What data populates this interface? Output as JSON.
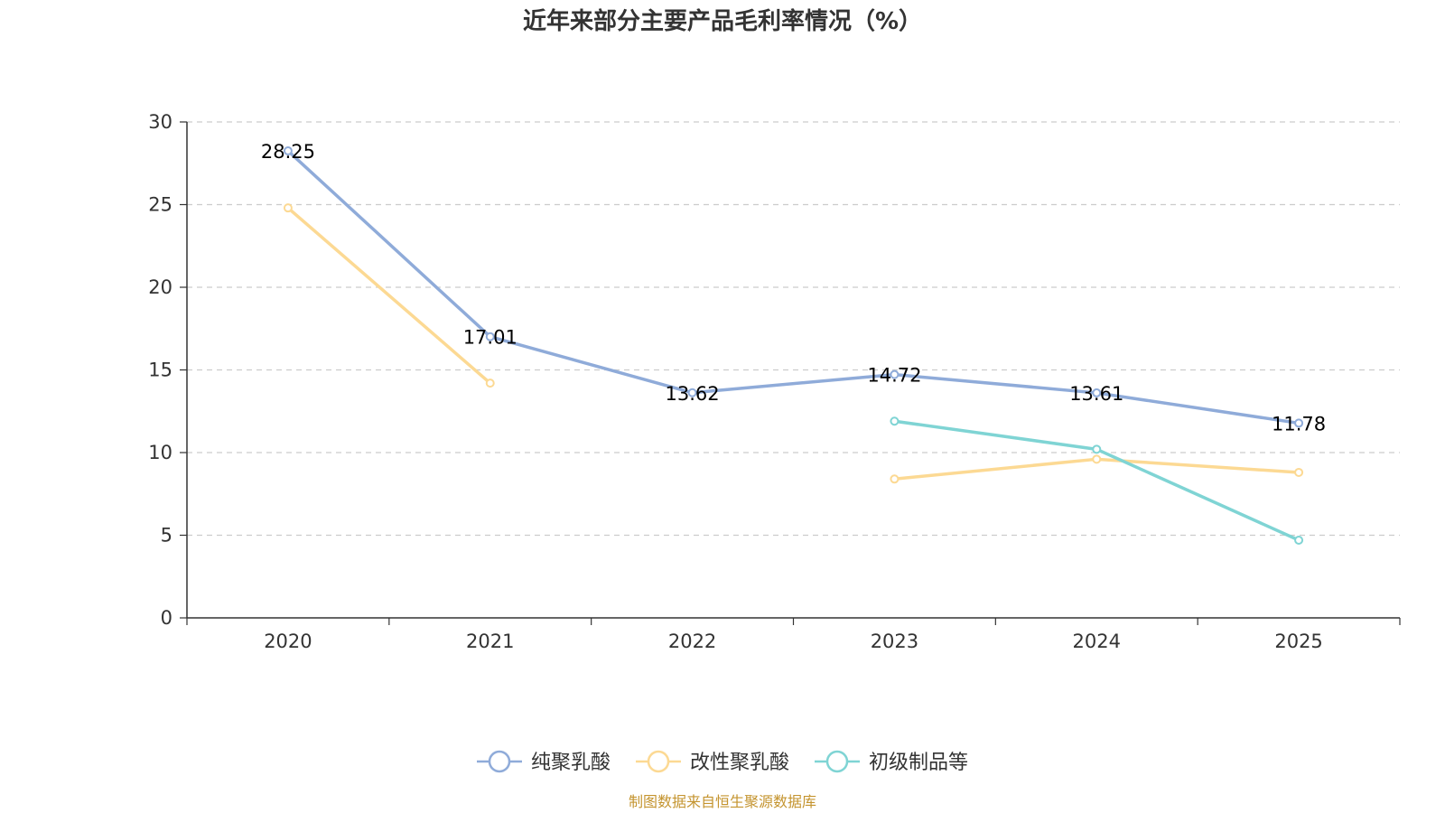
{
  "chart_data": {
    "type": "line",
    "title": "近年来部分主要产品毛利率情况（%）",
    "categories": [
      "2020",
      "2021",
      "2022",
      "2023",
      "2024",
      "2025"
    ],
    "ylim": [
      0,
      30
    ],
    "yticks": [
      0,
      5,
      10,
      15,
      20,
      25,
      30
    ],
    "grid": true,
    "legend_position": "bottom",
    "series": [
      {
        "name": "纯聚乳酸",
        "color": "#8fabd9",
        "show_labels": true,
        "values": [
          28.25,
          17.01,
          13.62,
          14.72,
          13.61,
          11.78
        ]
      },
      {
        "name": "改性聚乳酸",
        "color": "#fcd993",
        "show_labels": false,
        "values": [
          24.8,
          14.2,
          null,
          8.4,
          9.6,
          8.8
        ]
      },
      {
        "name": "初级制品等",
        "color": "#7fd4d4",
        "show_labels": false,
        "values": [
          null,
          null,
          null,
          11.9,
          10.2,
          4.7
        ]
      }
    ],
    "source": "制图数据来自恒生聚源数据库",
    "source_color": "#c4942f"
  }
}
